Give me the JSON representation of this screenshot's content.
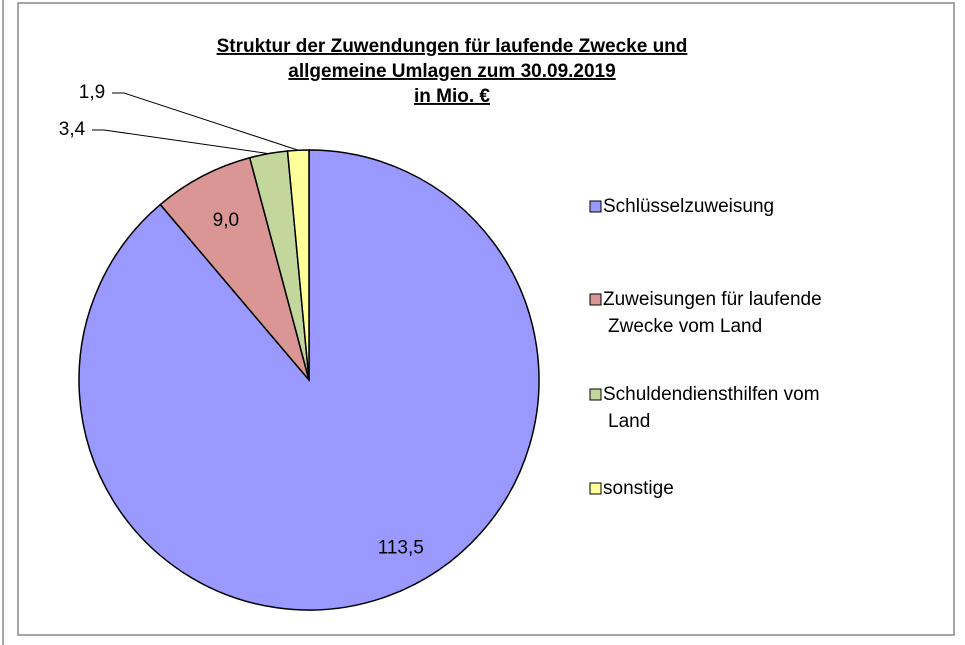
{
  "chart_data": {
    "type": "pie",
    "title": [
      "Struktur der Zuwendungen für laufende Zwecke und",
      "allgemeine Umlagen zum 30.09.2019",
      "in Mio. €"
    ],
    "categories": [
      "Schlüsselzuweisung",
      "Zuweisungen für laufende Zwecke vom Land",
      "Schuldendiensthilfen vom Land",
      "sonstige"
    ],
    "values": [
      113.5,
      9.0,
      3.4,
      1.9
    ],
    "value_labels": [
      "113,5",
      "9,0",
      "3,4",
      "1,9"
    ],
    "colors": [
      "#9999ff",
      "#da9694",
      "#c3d69b",
      "#ffff99"
    ],
    "legend": "right"
  }
}
